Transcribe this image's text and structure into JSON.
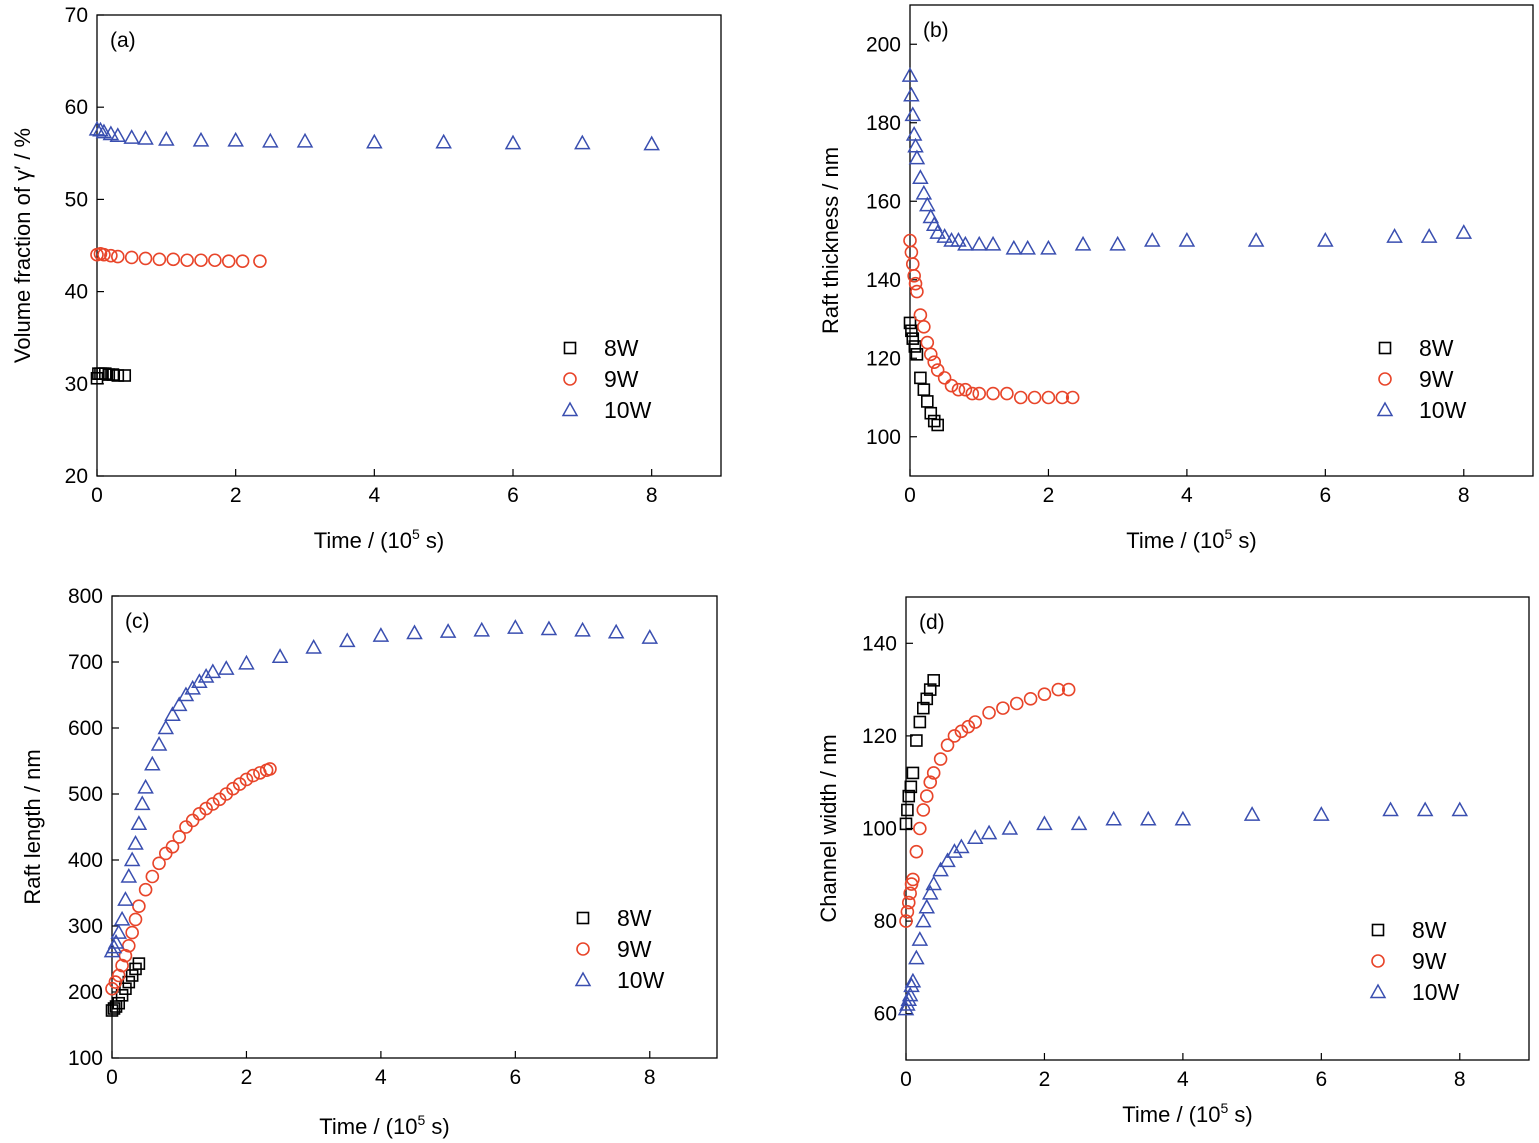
{
  "colors": {
    "8W": "#000000",
    "9W": "#e8452a",
    "10W": "#3a4fb0",
    "axis": "#000000"
  },
  "chart_data": [
    {
      "panel": "(a)",
      "type": "scatter",
      "xlabel": "Time / (10",
      "xlabel_sup": "5",
      "xlabel_tail": " s)",
      "ylabel": "Volume fraction of γ′ / %",
      "xlim": [
        0,
        9
      ],
      "ylim": [
        20,
        70
      ],
      "xticks": [
        0,
        2,
        4,
        6,
        8
      ],
      "yticks": [
        20,
        30,
        40,
        50,
        60,
        70
      ],
      "legend_position": "lower-right",
      "series": [
        {
          "name": "8W",
          "marker": "square",
          "x": [
            0.0,
            0.02,
            0.05,
            0.08,
            0.12,
            0.17,
            0.23,
            0.3,
            0.4
          ],
          "y": [
            30.6,
            31.1,
            31.1,
            31.1,
            31.1,
            31.0,
            31.0,
            30.9,
            30.9
          ]
        },
        {
          "name": "9W",
          "marker": "circle",
          "x": [
            0.0,
            0.05,
            0.1,
            0.2,
            0.3,
            0.5,
            0.7,
            0.9,
            1.1,
            1.3,
            1.5,
            1.7,
            1.9,
            2.1,
            2.35
          ],
          "y": [
            44.0,
            44.1,
            44.0,
            43.9,
            43.8,
            43.7,
            43.6,
            43.5,
            43.5,
            43.4,
            43.4,
            43.4,
            43.3,
            43.3,
            43.3
          ]
        },
        {
          "name": "10W",
          "marker": "triangle",
          "x": [
            0.0,
            0.05,
            0.1,
            0.2,
            0.3,
            0.5,
            0.7,
            1.0,
            1.5,
            2.0,
            2.5,
            3.0,
            4.0,
            5.0,
            6.0,
            7.0,
            8.0
          ],
          "y": [
            57.6,
            57.5,
            57.3,
            57.1,
            56.9,
            56.7,
            56.6,
            56.5,
            56.4,
            56.4,
            56.3,
            56.3,
            56.2,
            56.2,
            56.1,
            56.1,
            56.0
          ]
        }
      ]
    },
    {
      "panel": "(b)",
      "type": "scatter",
      "xlabel": "Time / (10",
      "xlabel_sup": "5",
      "xlabel_tail": " s)",
      "ylabel": "Raft thickness / nm",
      "xlim": [
        0,
        9
      ],
      "ylim": [
        90,
        210
      ],
      "xticks": [
        0,
        2,
        4,
        6,
        8
      ],
      "yticks": [
        100,
        120,
        140,
        160,
        180,
        200
      ],
      "legend_position": "lower-right",
      "series": [
        {
          "name": "8W",
          "marker": "square",
          "x": [
            0.0,
            0.02,
            0.04,
            0.07,
            0.1,
            0.15,
            0.2,
            0.25,
            0.3,
            0.35,
            0.4
          ],
          "y": [
            129,
            127,
            125,
            123,
            121,
            115,
            112,
            109,
            106,
            104,
            103
          ]
        },
        {
          "name": "9W",
          "marker": "circle",
          "x": [
            0.0,
            0.02,
            0.04,
            0.06,
            0.08,
            0.1,
            0.15,
            0.2,
            0.25,
            0.3,
            0.35,
            0.4,
            0.5,
            0.6,
            0.7,
            0.8,
            0.9,
            1.0,
            1.2,
            1.4,
            1.6,
            1.8,
            2.0,
            2.2,
            2.35
          ],
          "y": [
            150,
            147,
            144,
            141,
            139,
            137,
            131,
            128,
            124,
            121,
            119,
            117,
            115,
            113,
            112,
            112,
            111,
            111,
            111,
            111,
            110,
            110,
            110,
            110,
            110
          ]
        },
        {
          "name": "10W",
          "marker": "triangle",
          "x": [
            0.0,
            0.02,
            0.04,
            0.06,
            0.08,
            0.1,
            0.15,
            0.2,
            0.25,
            0.3,
            0.35,
            0.4,
            0.5,
            0.6,
            0.7,
            0.8,
            1.0,
            1.2,
            1.5,
            1.7,
            2.0,
            2.5,
            3.0,
            3.5,
            4.0,
            5.0,
            6.0,
            7.0,
            7.5,
            8.0
          ],
          "y": [
            192,
            187,
            182,
            177,
            174,
            171,
            166,
            162,
            159,
            156,
            154,
            152,
            151,
            150,
            150,
            149,
            149,
            149,
            148,
            148,
            148,
            149,
            149,
            150,
            150,
            150,
            150,
            151,
            151,
            152
          ]
        }
      ]
    },
    {
      "panel": "(c)",
      "type": "scatter",
      "xlabel": "Time / (10",
      "xlabel_sup": "5",
      "xlabel_tail": " s)",
      "ylabel": "Raft length / nm",
      "xlim": [
        0,
        9
      ],
      "ylim": [
        100,
        800
      ],
      "xticks": [
        0,
        2,
        4,
        6,
        8
      ],
      "yticks": [
        100,
        200,
        300,
        400,
        500,
        600,
        700,
        800
      ],
      "legend_position": "lower-right",
      "series": [
        {
          "name": "8W",
          "marker": "square",
          "x": [
            0.0,
            0.03,
            0.06,
            0.1,
            0.15,
            0.2,
            0.25,
            0.3,
            0.35,
            0.4
          ],
          "y": [
            172,
            175,
            178,
            183,
            195,
            205,
            215,
            225,
            235,
            243
          ]
        },
        {
          "name": "9W",
          "marker": "circle",
          "x": [
            0.0,
            0.05,
            0.1,
            0.15,
            0.2,
            0.25,
            0.3,
            0.35,
            0.4,
            0.5,
            0.6,
            0.7,
            0.8,
            0.9,
            1.0,
            1.1,
            1.2,
            1.3,
            1.4,
            1.5,
            1.6,
            1.7,
            1.8,
            1.9,
            2.0,
            2.1,
            2.2,
            2.3,
            2.35
          ],
          "y": [
            205,
            215,
            225,
            240,
            255,
            270,
            290,
            310,
            330,
            355,
            375,
            395,
            410,
            420,
            435,
            450,
            460,
            470,
            478,
            485,
            492,
            500,
            508,
            515,
            522,
            528,
            532,
            536,
            538
          ]
        },
        {
          "name": "10W",
          "marker": "triangle",
          "x": [
            0.0,
            0.03,
            0.06,
            0.1,
            0.15,
            0.2,
            0.25,
            0.3,
            0.35,
            0.4,
            0.45,
            0.5,
            0.6,
            0.7,
            0.8,
            0.9,
            1.0,
            1.1,
            1.2,
            1.3,
            1.4,
            1.5,
            1.7,
            2.0,
            2.5,
            3.0,
            3.5,
            4.0,
            4.5,
            5.0,
            5.5,
            6.0,
            6.5,
            7.0,
            7.5,
            8.0
          ],
          "y": [
            262,
            268,
            275,
            290,
            310,
            340,
            375,
            400,
            425,
            455,
            485,
            510,
            545,
            575,
            600,
            620,
            635,
            650,
            660,
            670,
            678,
            685,
            690,
            698,
            708,
            722,
            732,
            740,
            744,
            746,
            748,
            752,
            750,
            748,
            745,
            737
          ]
        }
      ]
    },
    {
      "panel": "(d)",
      "type": "scatter",
      "xlabel": "Time / (10",
      "xlabel_sup": "5",
      "xlabel_tail": " s)",
      "ylabel": "Channel width / nm",
      "xlim": [
        0,
        9
      ],
      "ylim": [
        50,
        150
      ],
      "xticks": [
        0,
        2,
        4,
        6,
        8
      ],
      "yticks": [
        60,
        80,
        100,
        120,
        140
      ],
      "legend_position": "lower-right",
      "series": [
        {
          "name": "8W",
          "marker": "square",
          "x": [
            0.0,
            0.02,
            0.04,
            0.07,
            0.1,
            0.15,
            0.2,
            0.25,
            0.3,
            0.35,
            0.4
          ],
          "y": [
            101,
            104,
            107,
            109,
            112,
            119,
            123,
            126,
            128,
            130,
            132
          ]
        },
        {
          "name": "9W",
          "marker": "circle",
          "x": [
            0.0,
            0.02,
            0.04,
            0.06,
            0.08,
            0.1,
            0.15,
            0.2,
            0.25,
            0.3,
            0.35,
            0.4,
            0.5,
            0.6,
            0.7,
            0.8,
            0.9,
            1.0,
            1.2,
            1.4,
            1.6,
            1.8,
            2.0,
            2.2,
            2.35
          ],
          "y": [
            80,
            82,
            84,
            86,
            88,
            89,
            95,
            100,
            104,
            107,
            110,
            112,
            115,
            118,
            120,
            121,
            122,
            123,
            125,
            126,
            127,
            128,
            129,
            130,
            130
          ]
        },
        {
          "name": "10W",
          "marker": "triangle",
          "x": [
            0.0,
            0.02,
            0.04,
            0.06,
            0.08,
            0.1,
            0.15,
            0.2,
            0.25,
            0.3,
            0.35,
            0.4,
            0.5,
            0.6,
            0.7,
            0.8,
            1.0,
            1.2,
            1.5,
            2.0,
            2.5,
            3.0,
            3.5,
            4.0,
            5.0,
            6.0,
            7.0,
            7.5,
            8.0
          ],
          "y": [
            61,
            62,
            63,
            64,
            66,
            67,
            72,
            76,
            80,
            83,
            86,
            88,
            91,
            93,
            95,
            96,
            98,
            99,
            100,
            101,
            101,
            102,
            102,
            102,
            103,
            103,
            104,
            104,
            104
          ]
        }
      ]
    }
  ]
}
